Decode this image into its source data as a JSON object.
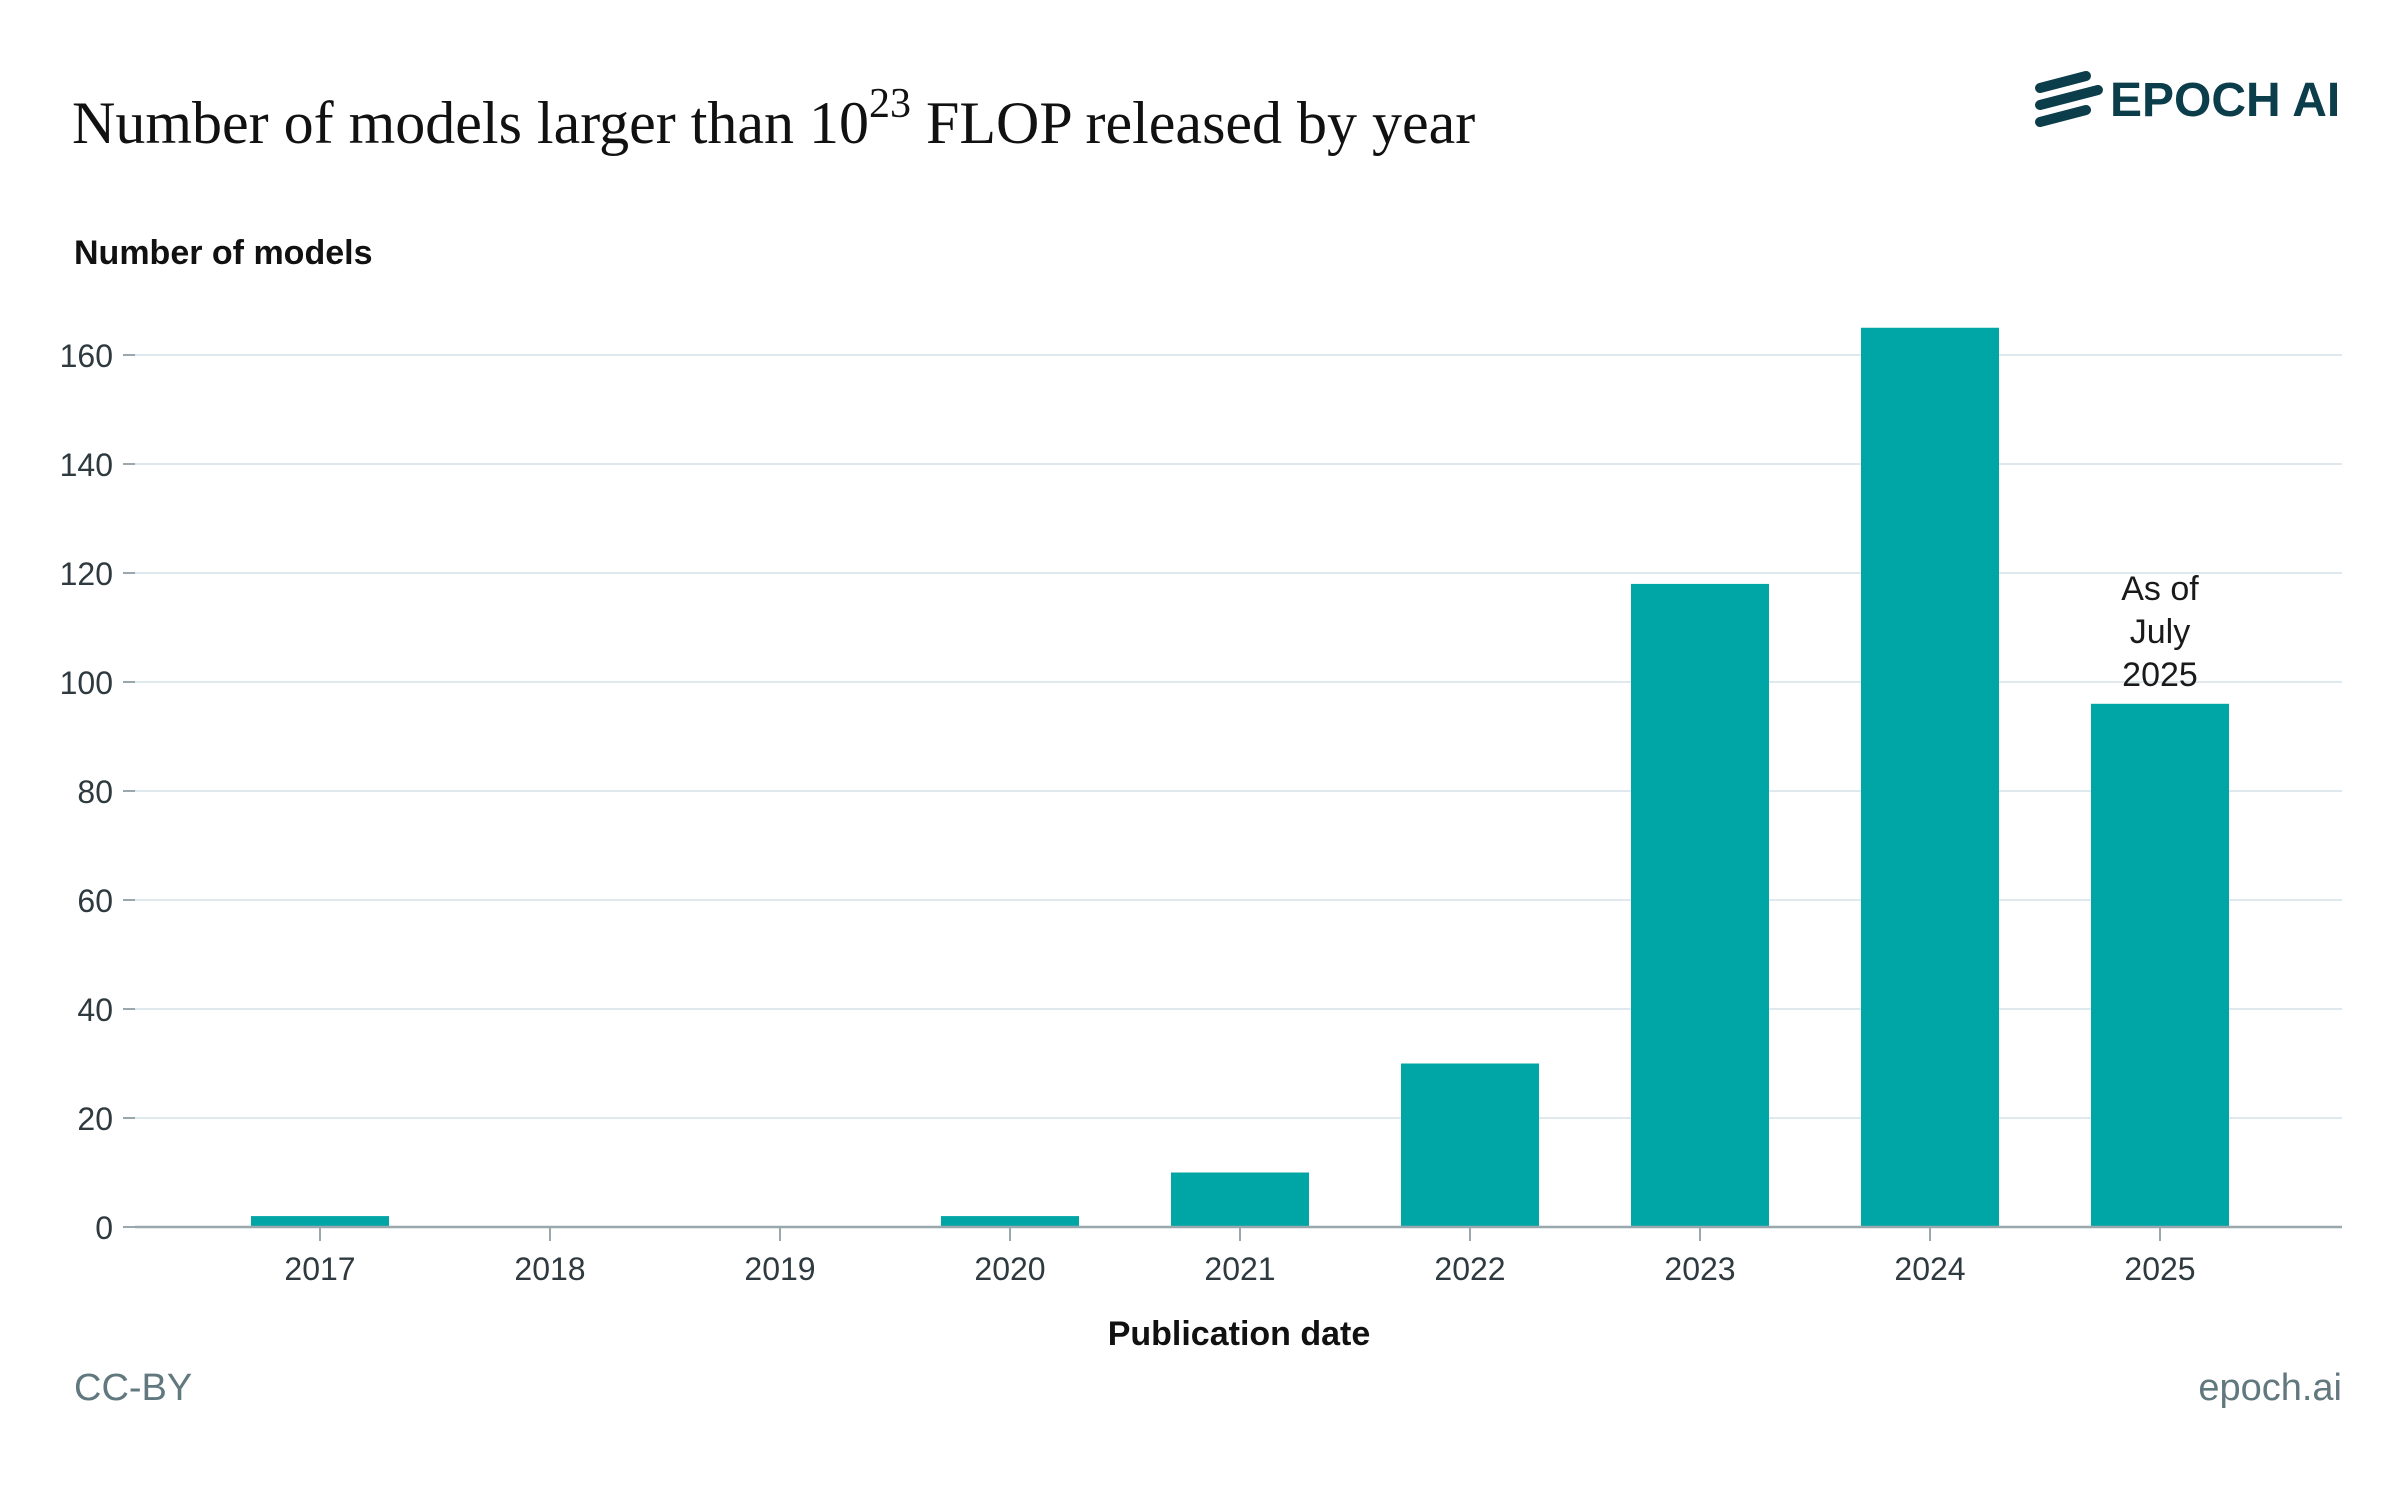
{
  "title": {
    "prefix": "Number of models larger than 10",
    "exponent": "23",
    "suffix": " FLOP released by year"
  },
  "brand": {
    "name": "EPOCH AI",
    "color": "#0b3d4a"
  },
  "footer": {
    "license": "CC-BY",
    "site": "epoch.ai"
  },
  "colors": {
    "bar": "#00a6a6",
    "gridline": "#dfe8ec",
    "axis": "#9aa7ad",
    "tick_text": "#2e3a3f",
    "footer_text": "#62787f"
  },
  "chart_data": {
    "type": "bar",
    "categories": [
      "2017",
      "2018",
      "2019",
      "2020",
      "2021",
      "2022",
      "2023",
      "2024",
      "2025"
    ],
    "values": [
      2,
      0,
      0,
      2,
      10,
      30,
      118,
      165,
      96
    ],
    "xlabel": "Publication date",
    "ylabel": "Number of models",
    "ylim": [
      0,
      170
    ],
    "yticks": [
      0,
      20,
      40,
      60,
      80,
      100,
      120,
      140,
      160
    ],
    "grid": true,
    "annotations": [
      {
        "category": "2025",
        "lines": [
          "As of",
          "July",
          "2025"
        ]
      }
    ]
  }
}
